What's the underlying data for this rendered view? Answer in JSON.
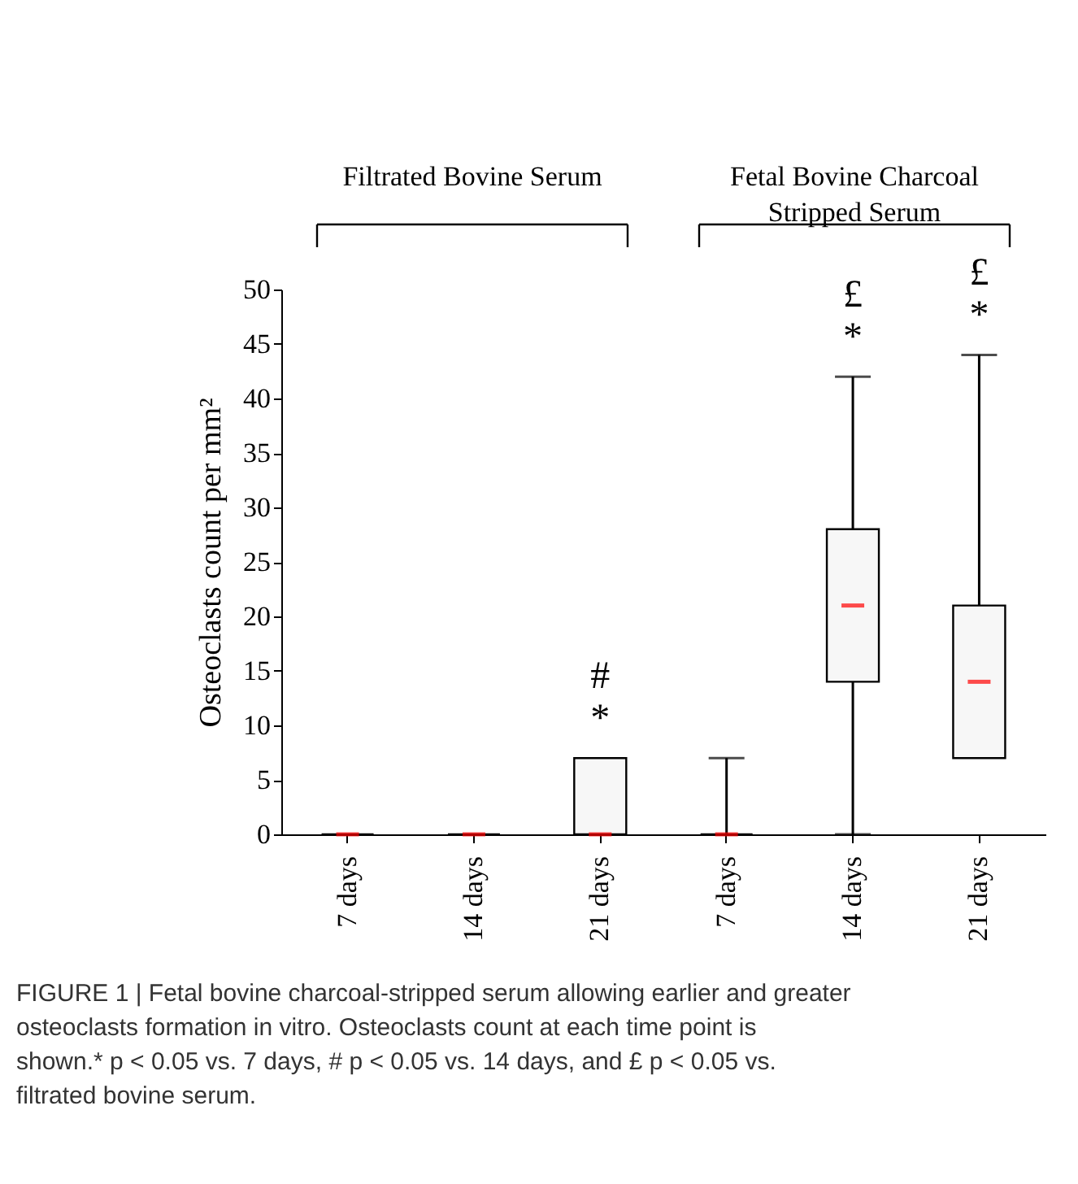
{
  "chart_data": {
    "type": "box",
    "ylabel": "Osteoclasts count per mm²",
    "categories": [
      "7 days",
      "14 days",
      "21 days",
      "7 days",
      "14 days",
      "21 days"
    ],
    "boxes": [
      {
        "low": 0,
        "q1": 0,
        "median": 0,
        "q3": 0,
        "high": 0
      },
      {
        "low": 0,
        "q1": 0,
        "median": 0,
        "q3": 0,
        "high": 0
      },
      {
        "low": 0,
        "q1": 0,
        "median": 0,
        "q3": 7,
        "high": 7
      },
      {
        "low": 0,
        "q1": 0,
        "median": 0,
        "q3": 0,
        "high": 7
      },
      {
        "low": 0,
        "q1": 14,
        "median": 21,
        "q3": 28,
        "high": 42
      },
      {
        "low": 7,
        "q1": 7,
        "median": 14,
        "q3": 21,
        "high": 44
      }
    ],
    "ylim": [
      0,
      50
    ],
    "yticks": [
      0,
      5,
      10,
      15,
      20,
      25,
      30,
      35,
      40,
      45,
      50
    ],
    "grid": false,
    "annotations": [
      "Filtrated Bovine Serum",
      "Fetal Bovine Charcoal Stripped Serum",
      "*",
      "#",
      "*",
      "£",
      "*",
      "£",
      "FIGURE 1 | Fetal bovine charcoal-stripped serum allowing earlier and greater osteoclasts formation in vitro. Osteoclasts count at each time point is shown.* p < 0.05 vs. 7 days, # p < 0.05 vs. 14 days, and £ p < 0.05 vs. filtrated bovine serum."
    ]
  }
}
